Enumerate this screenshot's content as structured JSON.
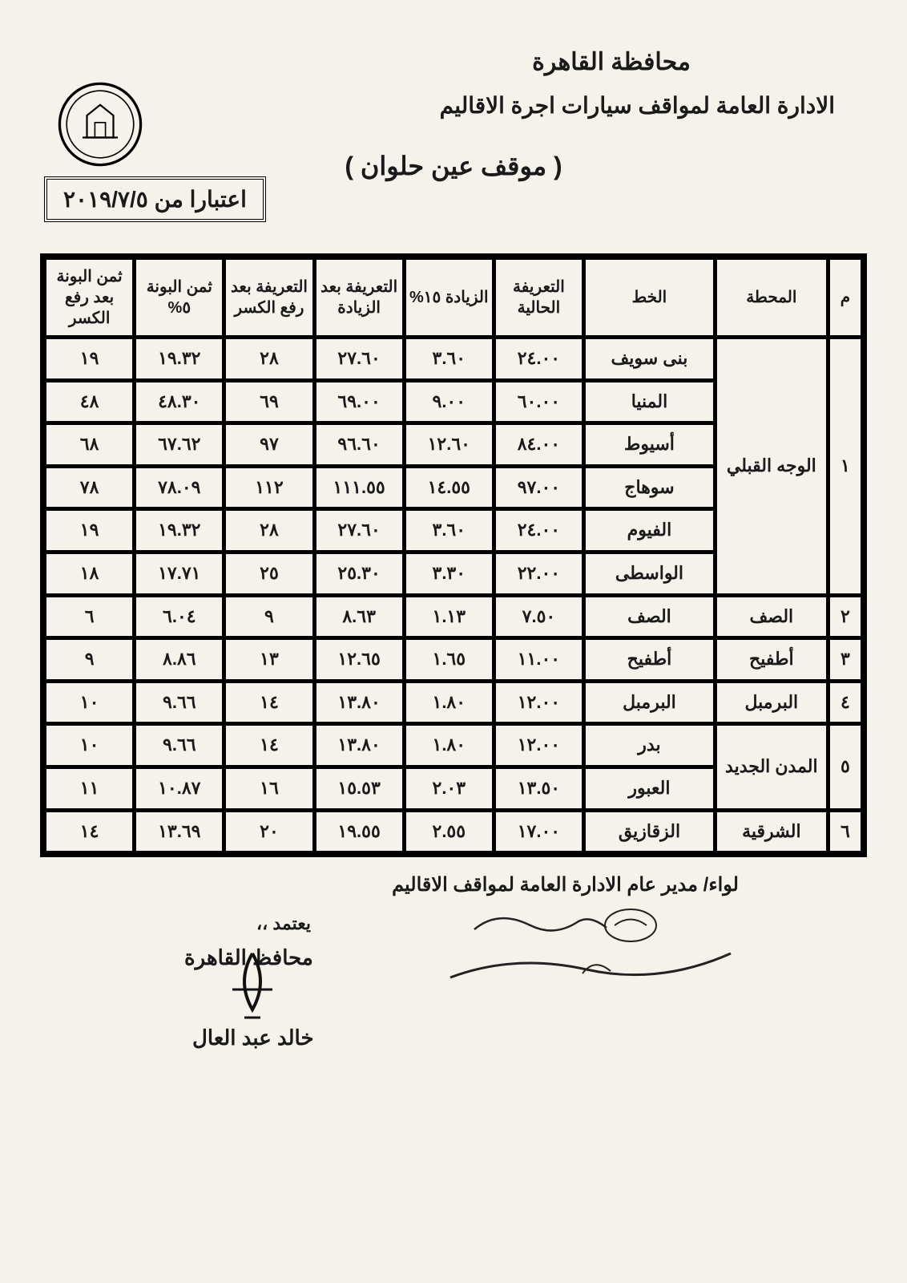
{
  "header": {
    "line1": "محافظة القاهرة",
    "line2": "الادارة العامة لمواقف سيارات اجرة الاقاليم",
    "subtitle": "( موقف عين حلوان )",
    "date_box": "اعتبارا من ٢٠١٩/٧/٥"
  },
  "table": {
    "columns": [
      "م",
      "المحطة",
      "الخط",
      "التعريفة الحالية",
      "الزيادة ١٥%",
      "التعريفة بعد الزيادة",
      "التعريفة بعد رفع الكسر",
      "ثمن البونة ٥%",
      "ثمن البونة بعد رفع الكسر"
    ],
    "groups": [
      {
        "idx": "١",
        "station": "الوجه القبلي",
        "rows": [
          {
            "line": "بنى سويف",
            "cur": "٢٤.٠٠",
            "inc": "٣.٦٠",
            "after": "٢٧.٦٠",
            "round": "٢٨",
            "bona": "١٩.٣٢",
            "bonar": "١٩"
          },
          {
            "line": "المنيا",
            "cur": "٦٠.٠٠",
            "inc": "٩.٠٠",
            "after": "٦٩.٠٠",
            "round": "٦٩",
            "bona": "٤٨.٣٠",
            "bonar": "٤٨"
          },
          {
            "line": "أسيوط",
            "cur": "٨٤.٠٠",
            "inc": "١٢.٦٠",
            "after": "٩٦.٦٠",
            "round": "٩٧",
            "bona": "٦٧.٦٢",
            "bonar": "٦٨"
          },
          {
            "line": "سوهاج",
            "cur": "٩٧.٠٠",
            "inc": "١٤.٥٥",
            "after": "١١١.٥٥",
            "round": "١١٢",
            "bona": "٧٨.٠٩",
            "bonar": "٧٨"
          },
          {
            "line": "الفيوم",
            "cur": "٢٤.٠٠",
            "inc": "٣.٦٠",
            "after": "٢٧.٦٠",
            "round": "٢٨",
            "bona": "١٩.٣٢",
            "bonar": "١٩"
          },
          {
            "line": "الواسطى",
            "cur": "٢٢.٠٠",
            "inc": "٣.٣٠",
            "after": "٢٥.٣٠",
            "round": "٢٥",
            "bona": "١٧.٧١",
            "bonar": "١٨"
          }
        ]
      },
      {
        "idx": "٢",
        "station": "الصف",
        "rows": [
          {
            "line": "الصف",
            "cur": "٧.٥٠",
            "inc": "١.١٣",
            "after": "٨.٦٣",
            "round": "٩",
            "bona": "٦.٠٤",
            "bonar": "٦"
          }
        ]
      },
      {
        "idx": "٣",
        "station": "أطفيح",
        "rows": [
          {
            "line": "أطفيح",
            "cur": "١١.٠٠",
            "inc": "١.٦٥",
            "after": "١٢.٦٥",
            "round": "١٣",
            "bona": "٨.٨٦",
            "bonar": "٩"
          }
        ]
      },
      {
        "idx": "٤",
        "station": "البرمبل",
        "rows": [
          {
            "line": "البرمبل",
            "cur": "١٢.٠٠",
            "inc": "١.٨٠",
            "after": "١٣.٨٠",
            "round": "١٤",
            "bona": "٩.٦٦",
            "bonar": "١٠"
          }
        ]
      },
      {
        "idx": "٥",
        "station": "المدن الجديد",
        "rows": [
          {
            "line": "بدر",
            "cur": "١٢.٠٠",
            "inc": "١.٨٠",
            "after": "١٣.٨٠",
            "round": "١٤",
            "bona": "٩.٦٦",
            "bonar": "١٠"
          },
          {
            "line": "العبور",
            "cur": "١٣.٥٠",
            "inc": "٢.٠٣",
            "after": "١٥.٥٣",
            "round": "١٦",
            "bona": "١٠.٨٧",
            "bonar": "١١"
          }
        ]
      },
      {
        "idx": "٦",
        "station": "الشرقية",
        "rows": [
          {
            "line": "الزقازيق",
            "cur": "١٧.٠٠",
            "inc": "٢.٥٥",
            "after": "١٩.٥٥",
            "round": "٢٠",
            "bona": "١٣.٦٩",
            "bonar": "١٤"
          }
        ]
      }
    ]
  },
  "signatures": {
    "right_title": "لواء/ مدير عام الادارة العامة لمواقف الاقاليم",
    "left_label": "يعتمد ،،",
    "left_title": "محافظ القاهرة",
    "left_name": "خالد عبد العال"
  }
}
